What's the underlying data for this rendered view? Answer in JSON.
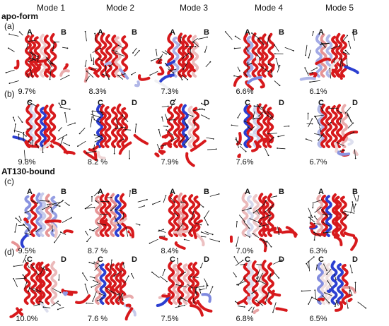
{
  "modes": [
    "Mode 1",
    "Mode 2",
    "Mode 3",
    "Mode 4",
    "Mode 5"
  ],
  "sections": {
    "apo": "apo-form",
    "bound": "AT130-bound"
  },
  "rows": [
    {
      "label": "(a)",
      "chains": [
        "A",
        "B"
      ],
      "percents": [
        "9.7%",
        "8.3%",
        "7.3%",
        "6.6%",
        "6.1%"
      ]
    },
    {
      "label": "(b)",
      "chains": [
        "C",
        "D"
      ],
      "percents": [
        "9.8%",
        "8.2 %",
        "7.9%",
        "7.6%",
        "6.7%"
      ]
    },
    {
      "label": "(c)",
      "chains": [
        "A",
        "B"
      ],
      "percents": [
        "9.5%",
        "8.7 %",
        "8.4%",
        "7.0%",
        "6.3%"
      ]
    },
    {
      "label": "(d)",
      "chains": [
        "C",
        "D"
      ],
      "percents": [
        "10.0%",
        "7.6 %",
        "7.5%",
        "6.8%",
        "6.5%"
      ]
    }
  ],
  "colors": {
    "red": "#d7191c",
    "white": "#f2f2f2",
    "blue": "#2c3fd1",
    "arrow": "#111111"
  }
}
